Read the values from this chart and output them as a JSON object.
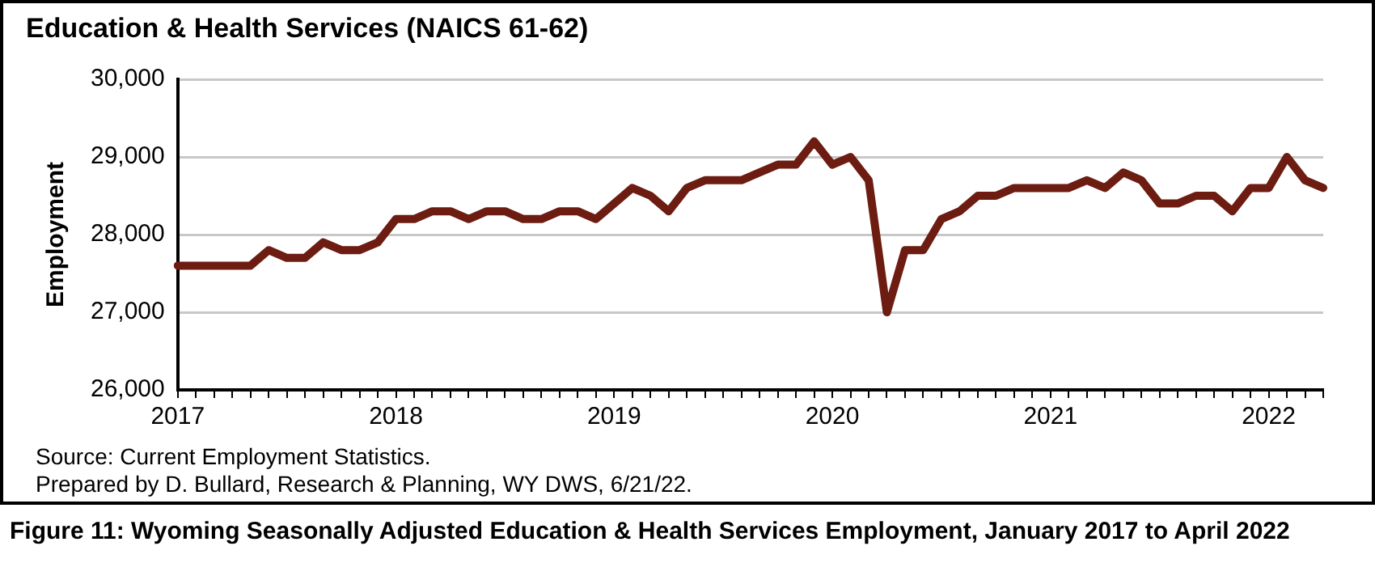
{
  "chart_data": {
    "type": "line",
    "title": "Education & Health Services (NAICS 61-62)",
    "ylabel": "Employment",
    "categories": [
      "2017",
      null,
      null,
      null,
      null,
      null,
      null,
      null,
      null,
      null,
      null,
      null,
      "2018",
      null,
      null,
      null,
      null,
      null,
      null,
      null,
      null,
      null,
      null,
      null,
      "2019",
      null,
      null,
      null,
      null,
      null,
      null,
      null,
      null,
      null,
      null,
      null,
      "2020",
      null,
      null,
      null,
      null,
      null,
      null,
      null,
      null,
      null,
      null,
      null,
      "2021",
      null,
      null,
      null,
      null,
      null,
      null,
      null,
      null,
      null,
      null,
      null,
      "2022",
      null,
      null,
      null
    ],
    "series": [
      {
        "color": "#6d1c12",
        "values": [
          27600,
          27600,
          27600,
          27600,
          27600,
          27800,
          27700,
          27700,
          27900,
          27800,
          27800,
          27900,
          28200,
          28200,
          28300,
          28300,
          28200,
          28300,
          28300,
          28200,
          28200,
          28300,
          28300,
          28200,
          28400,
          28600,
          28500,
          28300,
          28600,
          28700,
          28700,
          28700,
          28800,
          28900,
          28900,
          29200,
          28900,
          29000,
          28700,
          27000,
          27800,
          27800,
          28200,
          28300,
          28500,
          28500,
          28600,
          28600,
          28600,
          28600,
          28700,
          28600,
          28800,
          28700,
          28400,
          28400,
          28500,
          28500,
          28300,
          28600,
          28600,
          29000,
          28700,
          28600
        ]
      }
    ],
    "ylim": [
      26000,
      30000
    ],
    "yticks": [
      {
        "value": 26000,
        "label": "26,000"
      },
      {
        "value": 27000,
        "label": "27,000"
      },
      {
        "value": 28000,
        "label": "28,000"
      },
      {
        "value": 29000,
        "label": "29,000"
      },
      {
        "value": 30000,
        "label": "30,000"
      }
    ],
    "grid": "y",
    "marker": "none",
    "line_style": "solid",
    "annotations": [
      "Source: Current Employment Statistics.",
      "Prepared by D. Bullard, Research & Planning, WY DWS, 6/21/22.",
      "Figure 11: Wyoming Seasonally Adjusted Education & Health Services Employment, January 2017 to April 2022"
    ]
  }
}
